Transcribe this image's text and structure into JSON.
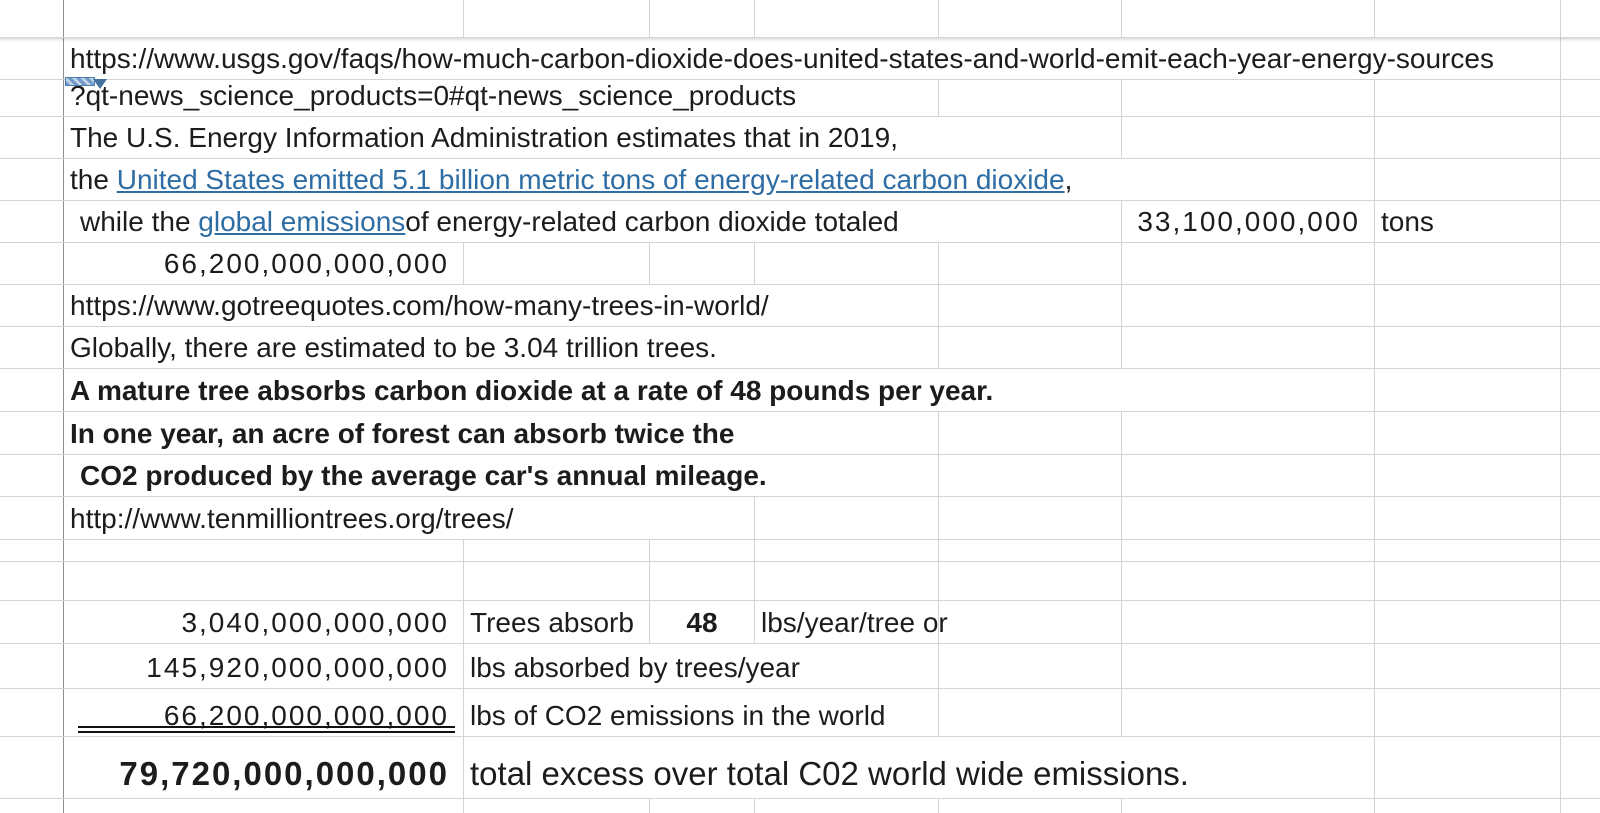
{
  "sheet": {
    "grid_color": "#d4d4d4",
    "link_color": "#2e6da4",
    "source1": {
      "url_line1": "https://www.usgs.gov/faqs/how-much-carbon-dioxide-does-united-states-and-world-emit-each-year-energy-sources",
      "url_line2": "?qt-news_science_products=0#qt-news_science_products"
    },
    "eia_statement": "The U.S. Energy Information Administration estimates that in 2019,",
    "us_emissions": {
      "prefix": "the",
      "link_text": "United States emitted 5.1 billion metric tons of energy-related carbon dioxide",
      "suffix": ","
    },
    "global_emissions": {
      "prefix": "while the",
      "link_text": "global emissions",
      "suffix": " of energy-related carbon dioxide totaled",
      "value": "33,100,000,000",
      "unit": "tons"
    },
    "world_emissions_lbs": "66,200,000,000,000",
    "source2_url": "https://www.gotreequotes.com/how-many-trees-in-world/",
    "trees_estimate": "Globally, there are estimated to be 3.04 trillion trees.",
    "facts": {
      "line1": "A mature tree absorbs carbon dioxide at a rate of 48 pounds per year.",
      "line2": "In one year, an acre of forest can absorb twice the",
      "line3": "CO2 produced by the average car's annual mileage."
    },
    "source3_url": "http://www.tenmilliontrees.org/trees/",
    "calc": {
      "trees_count": "3,040,000,000,000",
      "trees_label": "Trees absorb",
      "rate_value": "48",
      "rate_unit": "lbs/year/tree or",
      "absorbed_value": "145,920,000,000,000",
      "absorbed_label": "lbs absorbed by trees/year",
      "emissions_value": "66,200,000,000,000",
      "emissions_label": "lbs of CO2 emissions in the world",
      "total_value": "79,720,000,000,000",
      "total_label": "total excess over total C02 world wide emissions."
    }
  }
}
